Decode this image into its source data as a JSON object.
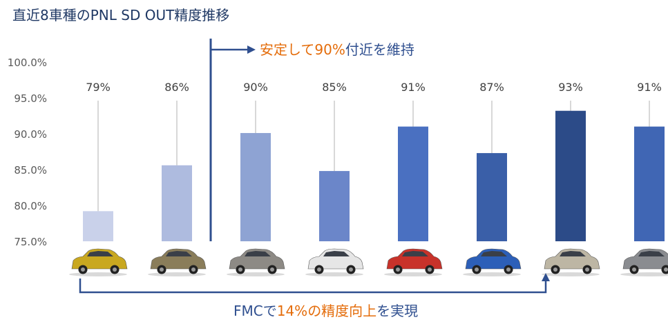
{
  "title": "直近8車種のPNL SD OUT精度推移",
  "chart_data": {
    "type": "bar",
    "categories": [
      "",
      "",
      "",
      "",
      "",
      "",
      "",
      ""
    ],
    "values": [
      79.2,
      85.6,
      90.1,
      84.8,
      91.0,
      87.3,
      93.2,
      91.0
    ],
    "data_labels": [
      "79%",
      "86%",
      "90%",
      "85%",
      "91%",
      "87%",
      "93%",
      "91%"
    ],
    "bar_colors": [
      "#c9d1ea",
      "#aebbdf",
      "#8ea3d3",
      "#6b86c9",
      "#4a70c1",
      "#3a5fa8",
      "#2c4b88",
      "#4066b4"
    ],
    "ylim": [
      75,
      100
    ],
    "yticks": [
      "75.0%",
      "80.0%",
      "85.0%",
      "90.0%",
      "95.0%",
      "100.0%"
    ],
    "ytick_values": [
      75,
      80,
      85,
      90,
      95,
      100
    ],
    "grid": false
  },
  "annotations": {
    "stable": {
      "part1": "安定して",
      "part2": "90%",
      "part3": "付近を維持"
    },
    "fmc": {
      "part1": "FMCで",
      "part2": "14%",
      "part3": "の精度向上",
      "part4": "を実現"
    }
  },
  "colors": {
    "accent_orange": "#e46c0a",
    "accent_blue": "#2f4f8f",
    "stem_gray": "#b0b0b0"
  },
  "car_icons": [
    "yellow-crossover-car-icon",
    "khaki-suv-car-icon",
    "gray-wagon-car-icon",
    "white-hatchback-car-icon",
    "red-coupe-car-icon",
    "blue-sedan-car-icon",
    "beige-crossover-car-icon",
    "gray-suv-car-icon"
  ]
}
